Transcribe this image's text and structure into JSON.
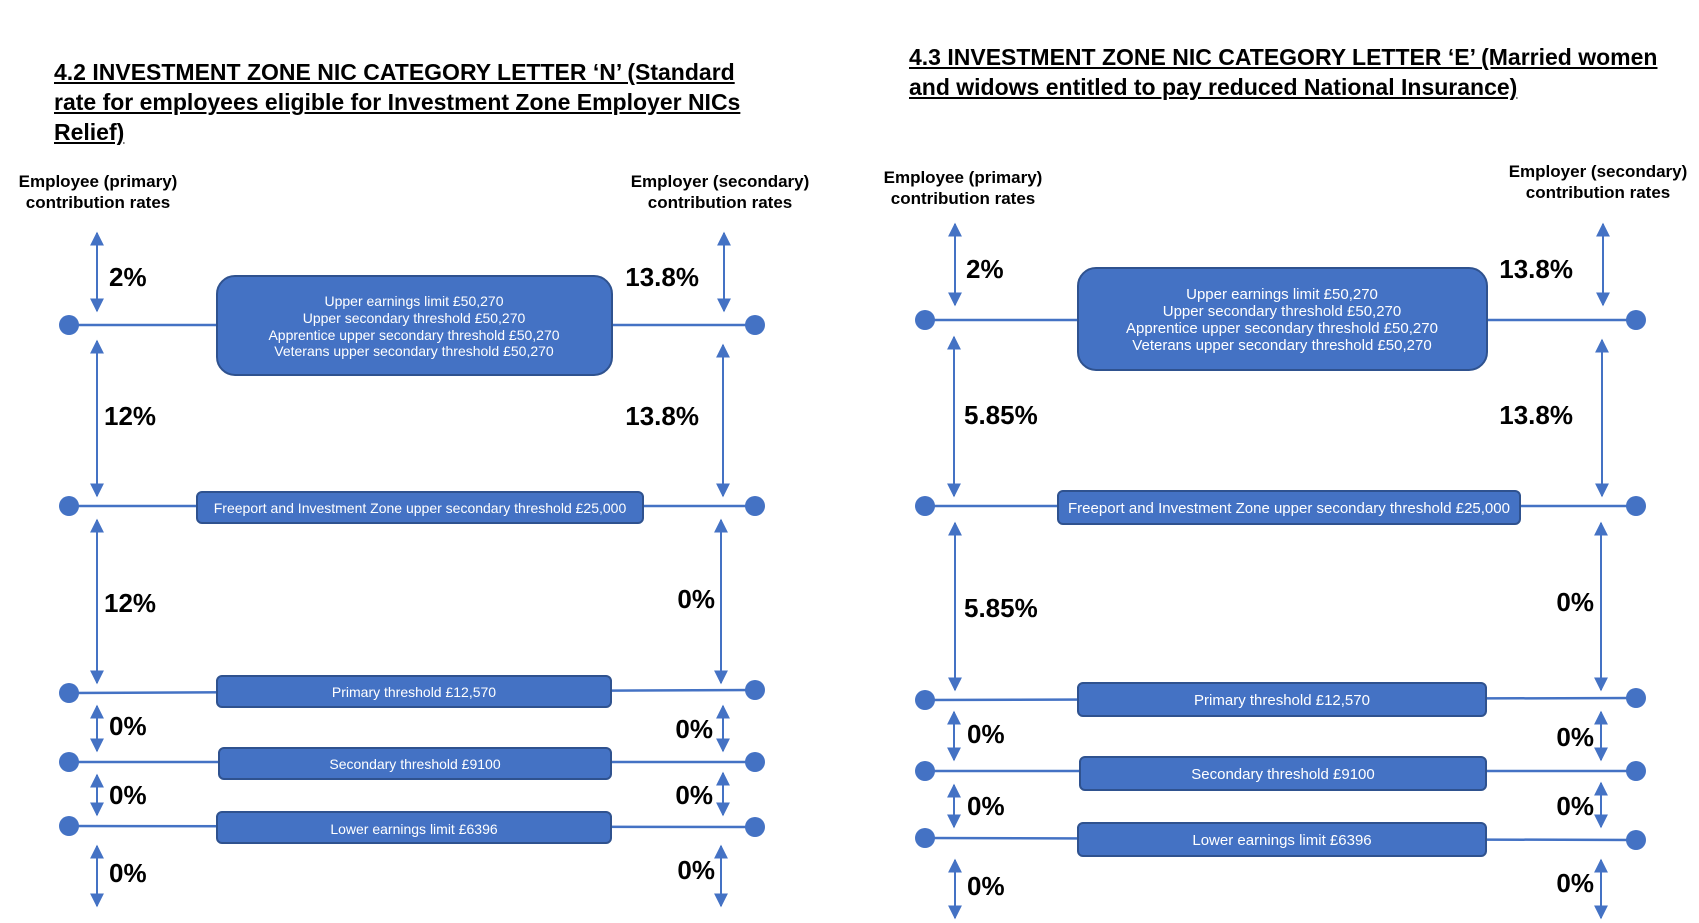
{
  "colors": {
    "accent": "#4472C4",
    "box_stroke": "#2F528F",
    "text": "#000000"
  },
  "panels": [
    {
      "title": "4.2 INVESTMENT ZONE NIC CATEGORY LETTER ‘N’ (Standard rate for employees eligible for Investment Zone Employer NICs Relief)",
      "employee_header": "Employee (primary) contribution rates",
      "employer_header": "Employer (secondary) contribution rates",
      "thresholds": [
        {
          "lines": [
            "Upper earnings limit £50,270",
            "Upper secondary threshold £50,270",
            "Apprentice upper secondary threshold £50,270",
            "Veterans upper secondary threshold £50,270"
          ]
        },
        {
          "lines": [
            "Freeport and Investment Zone upper secondary threshold £25,000"
          ]
        },
        {
          "lines": [
            "Primary threshold £12,570"
          ]
        },
        {
          "lines": [
            "Secondary threshold £9100"
          ]
        },
        {
          "lines": [
            "Lower earnings limit £6396"
          ]
        }
      ],
      "bands": [
        {
          "employee": "2%",
          "employer": "13.8%"
        },
        {
          "employee": "12%",
          "employer": "13.8%"
        },
        {
          "employee": "12%",
          "employer": "0%"
        },
        {
          "employee": "0%",
          "employer": "0%"
        },
        {
          "employee": "0%",
          "employer": "0%"
        },
        {
          "employee": "0%",
          "employer": "0%"
        }
      ]
    },
    {
      "title": "4.3 INVESTMENT ZONE NIC CATEGORY LETTER ‘E’ (Married women and widows entitled to pay reduced National Insurance)",
      "employee_header": "Employee (primary) contribution rates",
      "employer_header": "Employer (secondary) contribution rates",
      "thresholds": [
        {
          "lines": [
            "Upper earnings limit £50,270",
            "Upper secondary threshold £50,270",
            "Apprentice upper secondary threshold £50,270",
            "Veterans upper secondary threshold £50,270"
          ]
        },
        {
          "lines": [
            "Freeport and Investment Zone upper secondary threshold £25,000"
          ]
        },
        {
          "lines": [
            "Primary threshold £12,570"
          ]
        },
        {
          "lines": [
            "Secondary threshold £9100"
          ]
        },
        {
          "lines": [
            "Lower earnings limit £6396"
          ]
        }
      ],
      "bands": [
        {
          "employee": "2%",
          "employer": "13.8%"
        },
        {
          "employee": "5.85%",
          "employer": "13.8%"
        },
        {
          "employee": "5.85%",
          "employer": "0%"
        },
        {
          "employee": "0%",
          "employer": "0%"
        },
        {
          "employee": "0%",
          "employer": "0%"
        },
        {
          "employee": "0%",
          "employer": "0%"
        }
      ]
    }
  ]
}
